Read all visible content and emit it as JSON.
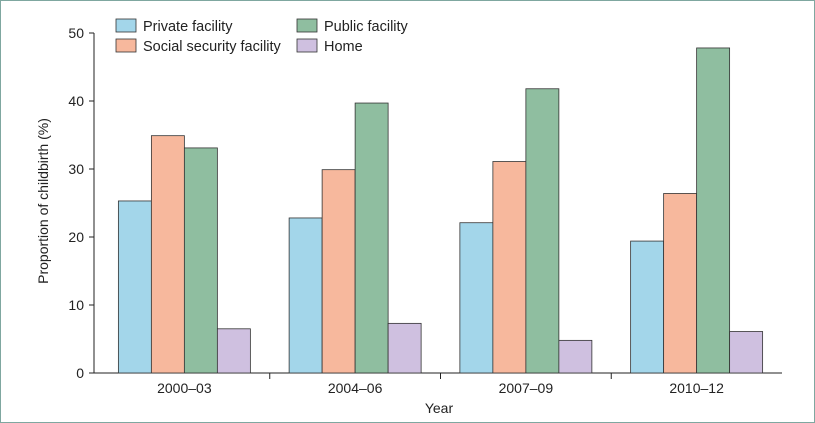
{
  "chart_data": {
    "type": "bar",
    "title": "",
    "xlabel": "Year",
    "ylabel": "Proportion of childbirth (%)",
    "ylim": [
      0,
      50
    ],
    "yticks": [
      0,
      10,
      20,
      30,
      40,
      50
    ],
    "grid": false,
    "legend_position": "top-left",
    "categories": [
      "2000–03",
      "2004–06",
      "2007–09",
      "2010–12"
    ],
    "series": [
      {
        "name": "Private facility",
        "color": "#a3d6ea",
        "values": [
          25.3,
          22.8,
          22.1,
          19.4
        ]
      },
      {
        "name": "Social security facility",
        "color": "#f7b89d",
        "values": [
          34.9,
          29.9,
          31.1,
          26.4
        ]
      },
      {
        "name": "Public facility",
        "color": "#8fbea0",
        "values": [
          33.1,
          39.7,
          41.8,
          47.8
        ]
      },
      {
        "name": "Home",
        "color": "#cfc0e0",
        "values": [
          6.5,
          7.3,
          4.8,
          6.1
        ]
      }
    ]
  }
}
